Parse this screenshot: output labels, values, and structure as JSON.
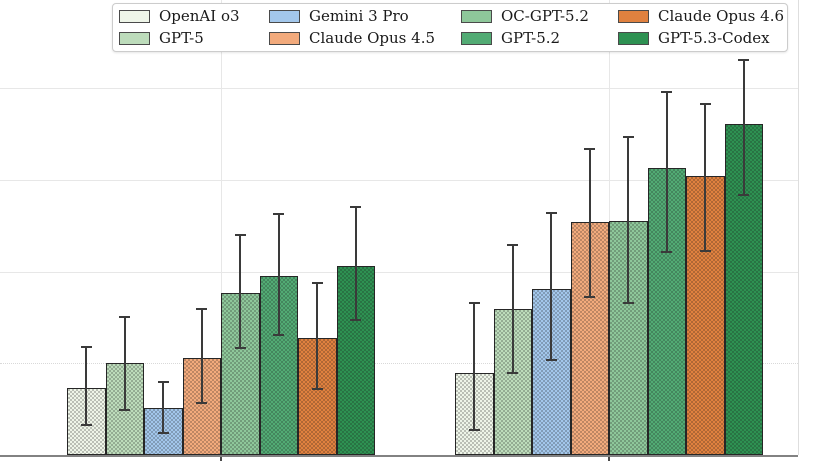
{
  "chart_data": {
    "type": "bar",
    "title": "",
    "categories": [
      "",
      ""
    ],
    "n_groups": 2,
    "axis_labels_visible": false,
    "note": "Grouped bar chart with error bars. X and Y tick labels are cropped outside the visible image; values estimated assuming 0.1 per horizontal gridline with baseline 0 at the bottom axis.",
    "gridlines": {
      "solid_values": [
        0.2,
        0.3,
        0.4
      ],
      "dotted_values": [
        0.1
      ]
    },
    "ylim_visible": [
      0,
      0.45
    ],
    "legend_position": "top-center",
    "legend_columns": 4,
    "error_bars": true,
    "series": [
      {
        "name": "OpenAI o3",
        "color": "#eef5e8",
        "values": [
          0.073,
          0.089
        ],
        "err_low": [
          0.033,
          0.027
        ],
        "err_high": [
          0.118,
          0.166
        ]
      },
      {
        "name": "GPT-5",
        "color": "#bddcbb",
        "values": [
          0.1,
          0.159
        ],
        "err_low": [
          0.049,
          0.089
        ],
        "err_high": [
          0.15,
          0.229
        ]
      },
      {
        "name": "Gemini 3 Pro",
        "color": "#a3c7eb",
        "values": [
          0.051,
          0.181
        ],
        "err_low": [
          0.024,
          0.104
        ],
        "err_high": [
          0.08,
          0.264
        ]
      },
      {
        "name": "Claude Opus 4.5",
        "color": "#f2aa7c",
        "values": [
          0.106,
          0.254
        ],
        "err_low": [
          0.057,
          0.172
        ],
        "err_high": [
          0.159,
          0.334
        ]
      },
      {
        "name": "OC-GPT-5.2",
        "color": "#8ec79a",
        "values": [
          0.177,
          0.255
        ],
        "err_low": [
          0.117,
          0.166
        ],
        "err_high": [
          0.24,
          0.347
        ]
      },
      {
        "name": "GPT-5.2",
        "color": "#52ab74",
        "values": [
          0.195,
          0.313
        ],
        "err_low": [
          0.131,
          0.221
        ],
        "err_high": [
          0.263,
          0.396
        ]
      },
      {
        "name": "Claude Opus 4.6",
        "color": "#e0813f",
        "values": [
          0.128,
          0.304
        ],
        "err_low": [
          0.072,
          0.222
        ],
        "err_high": [
          0.187,
          0.383
        ]
      },
      {
        "name": "GPT-5.3-Codex",
        "color": "#2e9152",
        "values": [
          0.206,
          0.361
        ],
        "err_low": [
          0.147,
          0.283
        ],
        "err_high": [
          0.27,
          0.431
        ]
      }
    ],
    "colors": {
      "bar_edge": "#262626",
      "error_bar": "#3a3a3a",
      "gridline": "#e7e7e7",
      "axis_line": "#828282",
      "legend_border": "#cccccc",
      "background": "#ffffff"
    }
  }
}
